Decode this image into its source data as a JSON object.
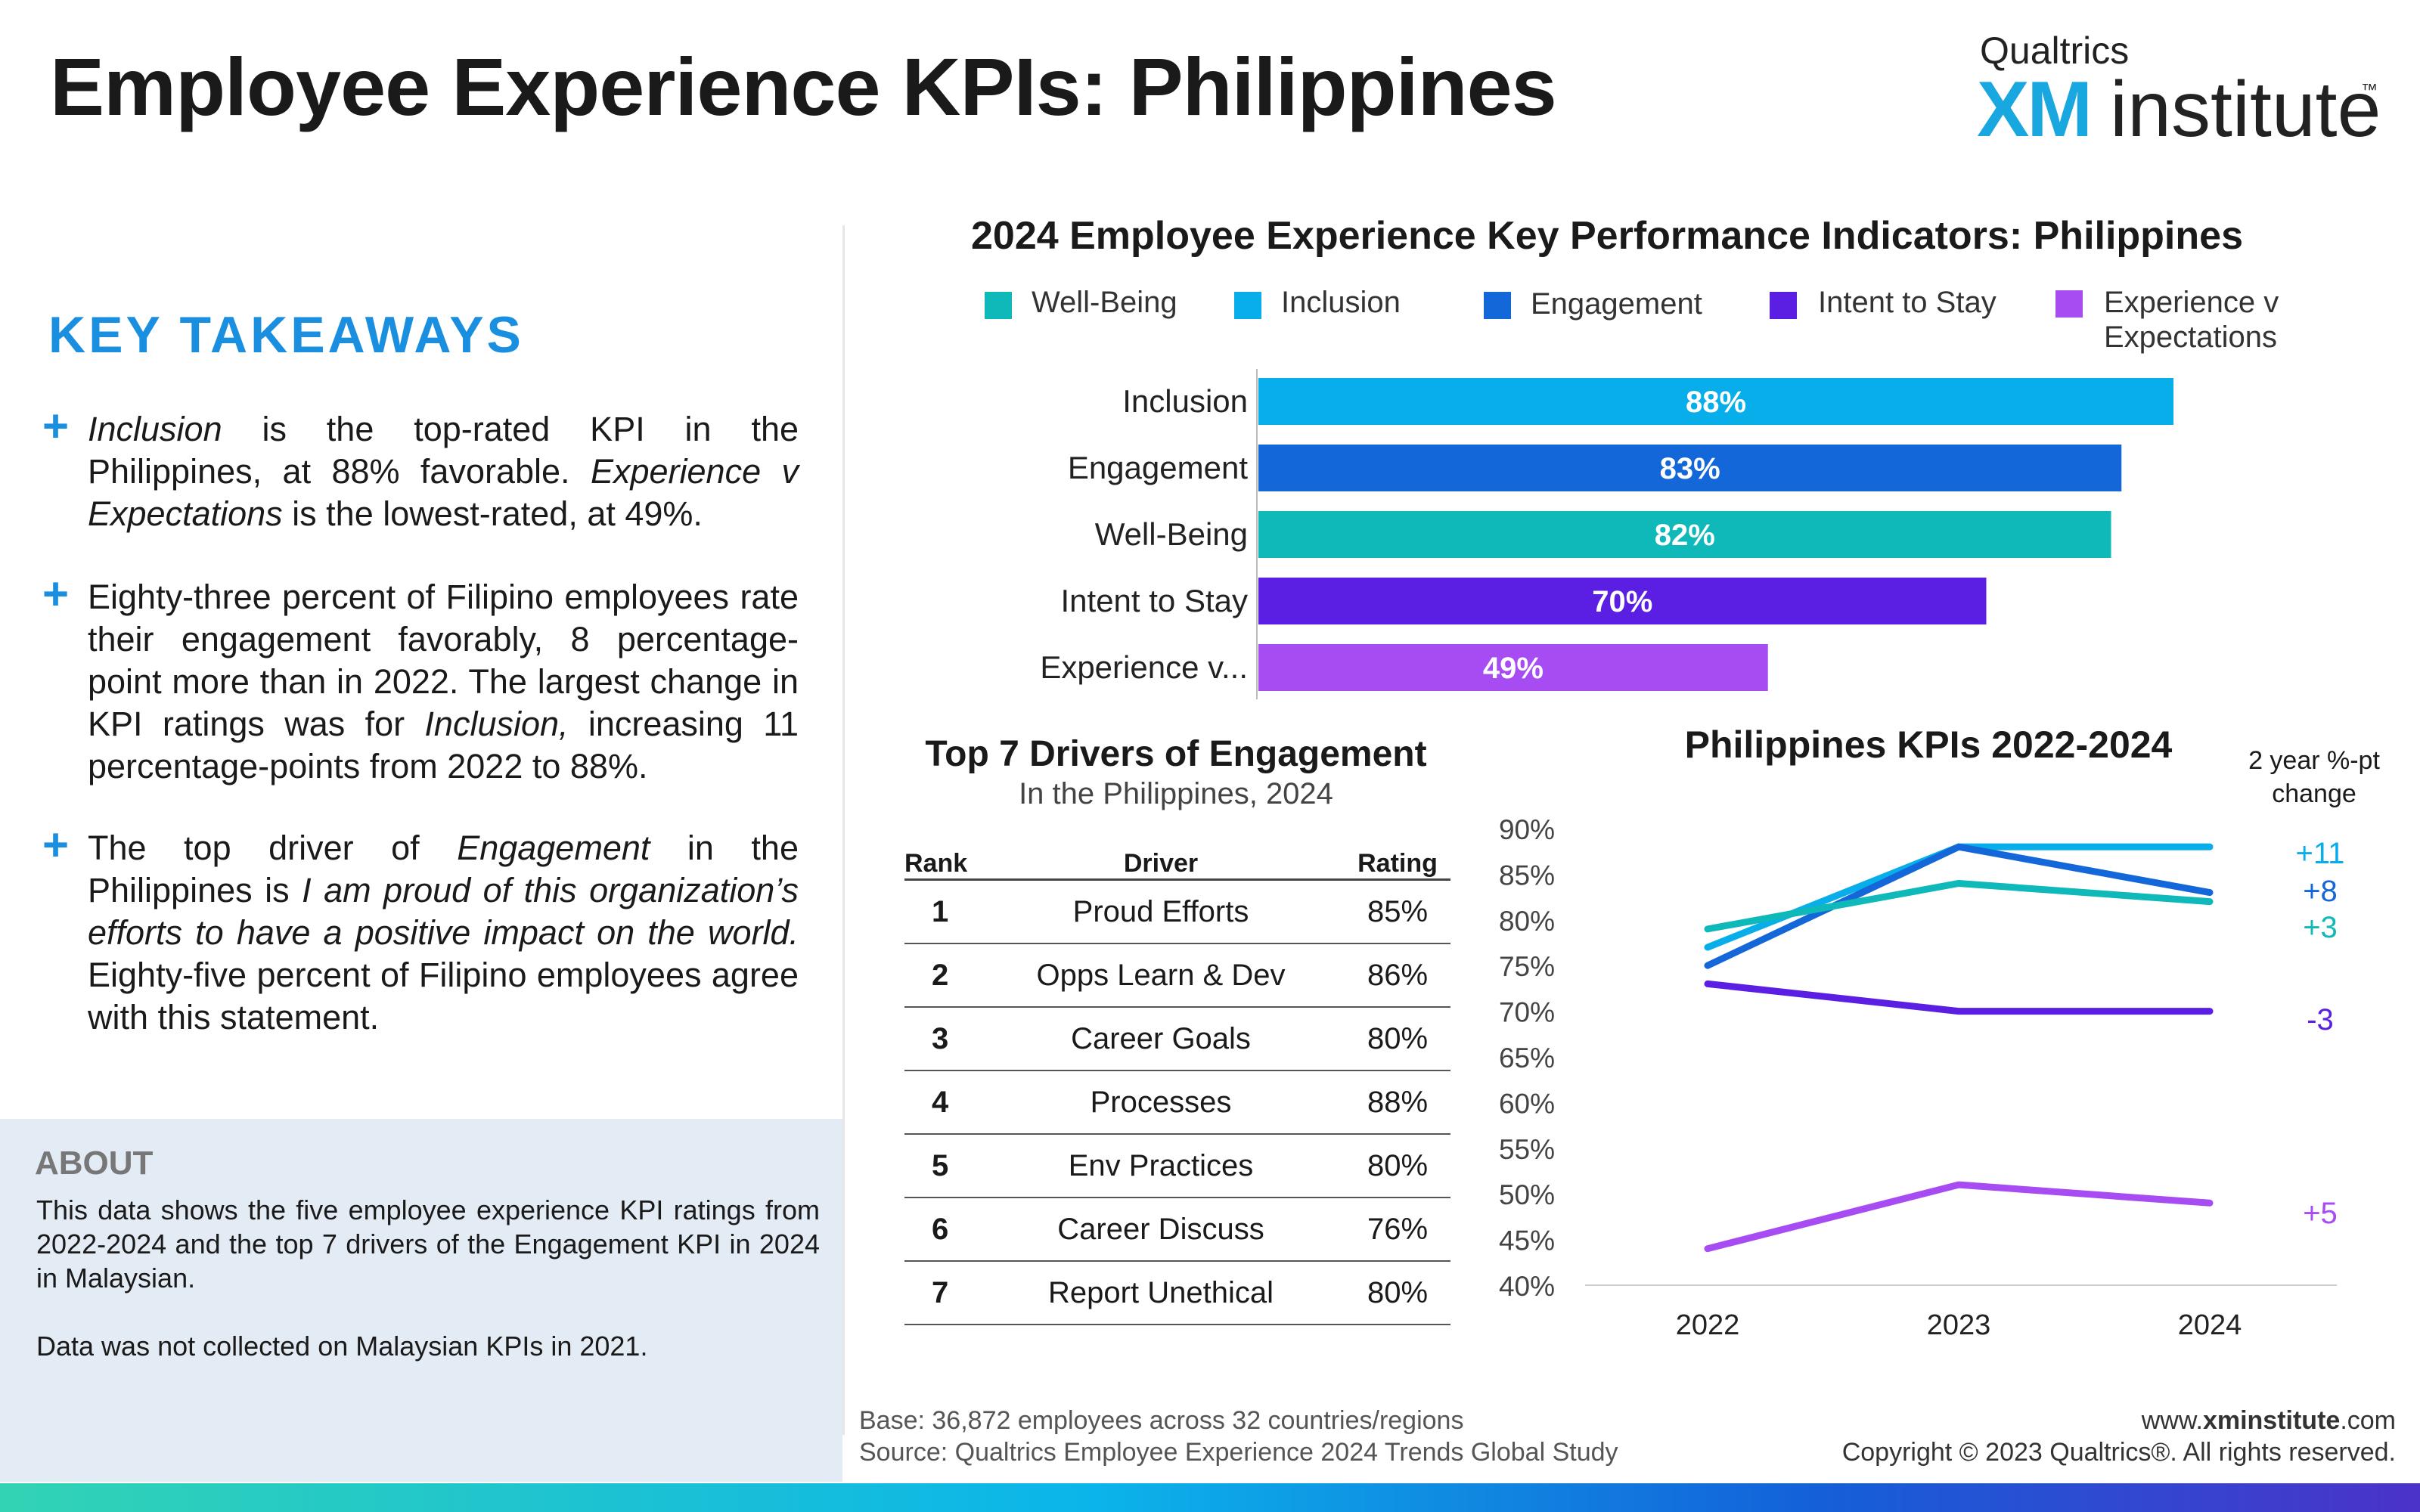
{
  "header": {
    "title": "Employee Experience KPIs: Philippines",
    "logo_top": "Qualtrics",
    "logo_xm": "XM",
    "logo_institute": "institute",
    "logo_tm": "™"
  },
  "takeaways": {
    "title": "KEY TAKEAWAYS",
    "plus": "+",
    "items": [
      {
        "a_italic": "Inclusion",
        "b": " is the top-rated KPI in the Philippines, at 88% favorable. ",
        "c_italic": "Experience v Expectations",
        "d": " is the lowest-rated, at 49%."
      },
      {
        "a": "Eighty-three percent of Filipino employees rate their engagement favorably, 8 percentage-point more than in 2022. The largest change in KPI ratings was for ",
        "b_italic": "Inclusion,",
        "c": " increasing 11 percentage-points from 2022 to 88%."
      },
      {
        "a": "The top driver of ",
        "b_italic": "Engagement",
        "c": " in the Philippines is ",
        "d_italic": "I am proud of this organization’s efforts to have a positive impact on the world.",
        "e": " Eighty-five percent of Filipino employees agree with this statement."
      }
    ]
  },
  "about": {
    "title": "ABOUT",
    "text1": "This data shows the five employee experience KPI ratings from 2022-2024 and the top 7 drivers of the Engagement KPI in 2024 in Malaysian.",
    "text2": "Data was not collected on Malaysian KPIs in 2021."
  },
  "bar_section": {
    "title": "2024 Employee Experience Key Performance Indicators: Philippines",
    "legend": [
      {
        "label": "Well-Being",
        "color": "#0fb8b9"
      },
      {
        "label": "Inclusion",
        "color": "#08aeea"
      },
      {
        "label": "Engagement",
        "color": "#1467d9"
      },
      {
        "label": "Intent to Stay",
        "color": "#5b1ee3"
      },
      {
        "label_line1": "Experience v",
        "label_line2": "Expectations",
        "color": "#a64cf2"
      }
    ]
  },
  "chart_data": [
    {
      "type": "bar",
      "orientation": "horizontal",
      "title": "2024 Employee Experience Key Performance Indicators: Philippines",
      "categories": [
        "Inclusion",
        "Engagement",
        "Well-Being",
        "Intent to Stay",
        "Experience v..."
      ],
      "values": [
        88,
        83,
        82,
        70,
        49
      ],
      "value_labels": [
        "88%",
        "83%",
        "82%",
        "70%",
        "49%"
      ],
      "colors": [
        "#08aeea",
        "#1467d9",
        "#0fb8b9",
        "#5b1ee3",
        "#a64cf2"
      ],
      "xlim": [
        0,
        100
      ]
    },
    {
      "type": "line",
      "title": "Philippines KPIs 2022-2024",
      "x": [
        "2022",
        "2023",
        "2024"
      ],
      "ylim": [
        40,
        90
      ],
      "yticks": [
        "90%",
        "85%",
        "80%",
        "75%",
        "70%",
        "65%",
        "60%",
        "55%",
        "50%",
        "45%",
        "40%"
      ],
      "change_header": [
        "2 year %-pt",
        "change"
      ],
      "series": [
        {
          "values": [
            77,
            88,
            88
          ],
          "color": "#08aeea",
          "change": "+11"
        },
        {
          "values": [
            75,
            88,
            83
          ],
          "color": "#1467d9",
          "change": "+8"
        },
        {
          "values": [
            79,
            84,
            82
          ],
          "color": "#0fb8b9",
          "change": "+3"
        },
        {
          "values": [
            73,
            70,
            70
          ],
          "color": "#5b1ee3",
          "change": "-3"
        },
        {
          "values": [
            44,
            51,
            49
          ],
          "color": "#a64cf2",
          "change": "+5"
        }
      ]
    }
  ],
  "drivers": {
    "title": "Top 7 Drivers of Engagement",
    "subtitle": "In the Philippines, 2024",
    "headers": [
      "Rank",
      "Driver",
      "Rating"
    ],
    "rows": [
      [
        "1",
        "Proud Efforts",
        "85%"
      ],
      [
        "2",
        "Opps Learn & Dev",
        "86%"
      ],
      [
        "3",
        "Career Goals",
        "80%"
      ],
      [
        "4",
        "Processes",
        "88%"
      ],
      [
        "5",
        "Env Practices",
        "80%"
      ],
      [
        "6",
        "Career Discuss",
        "76%"
      ],
      [
        "7",
        "Report Unethical",
        "80%"
      ]
    ]
  },
  "footer": {
    "base": "Base: 36,872 employees across 32 countries/regions",
    "source": "Source: Qualtrics Employee Experience 2024 Trends Global Study",
    "web_prefix": "www.",
    "web_bold": "xminstitute",
    "web_suffix": ".com",
    "copyright": "Copyright © 2023 Qualtrics®. All rights reserved."
  }
}
